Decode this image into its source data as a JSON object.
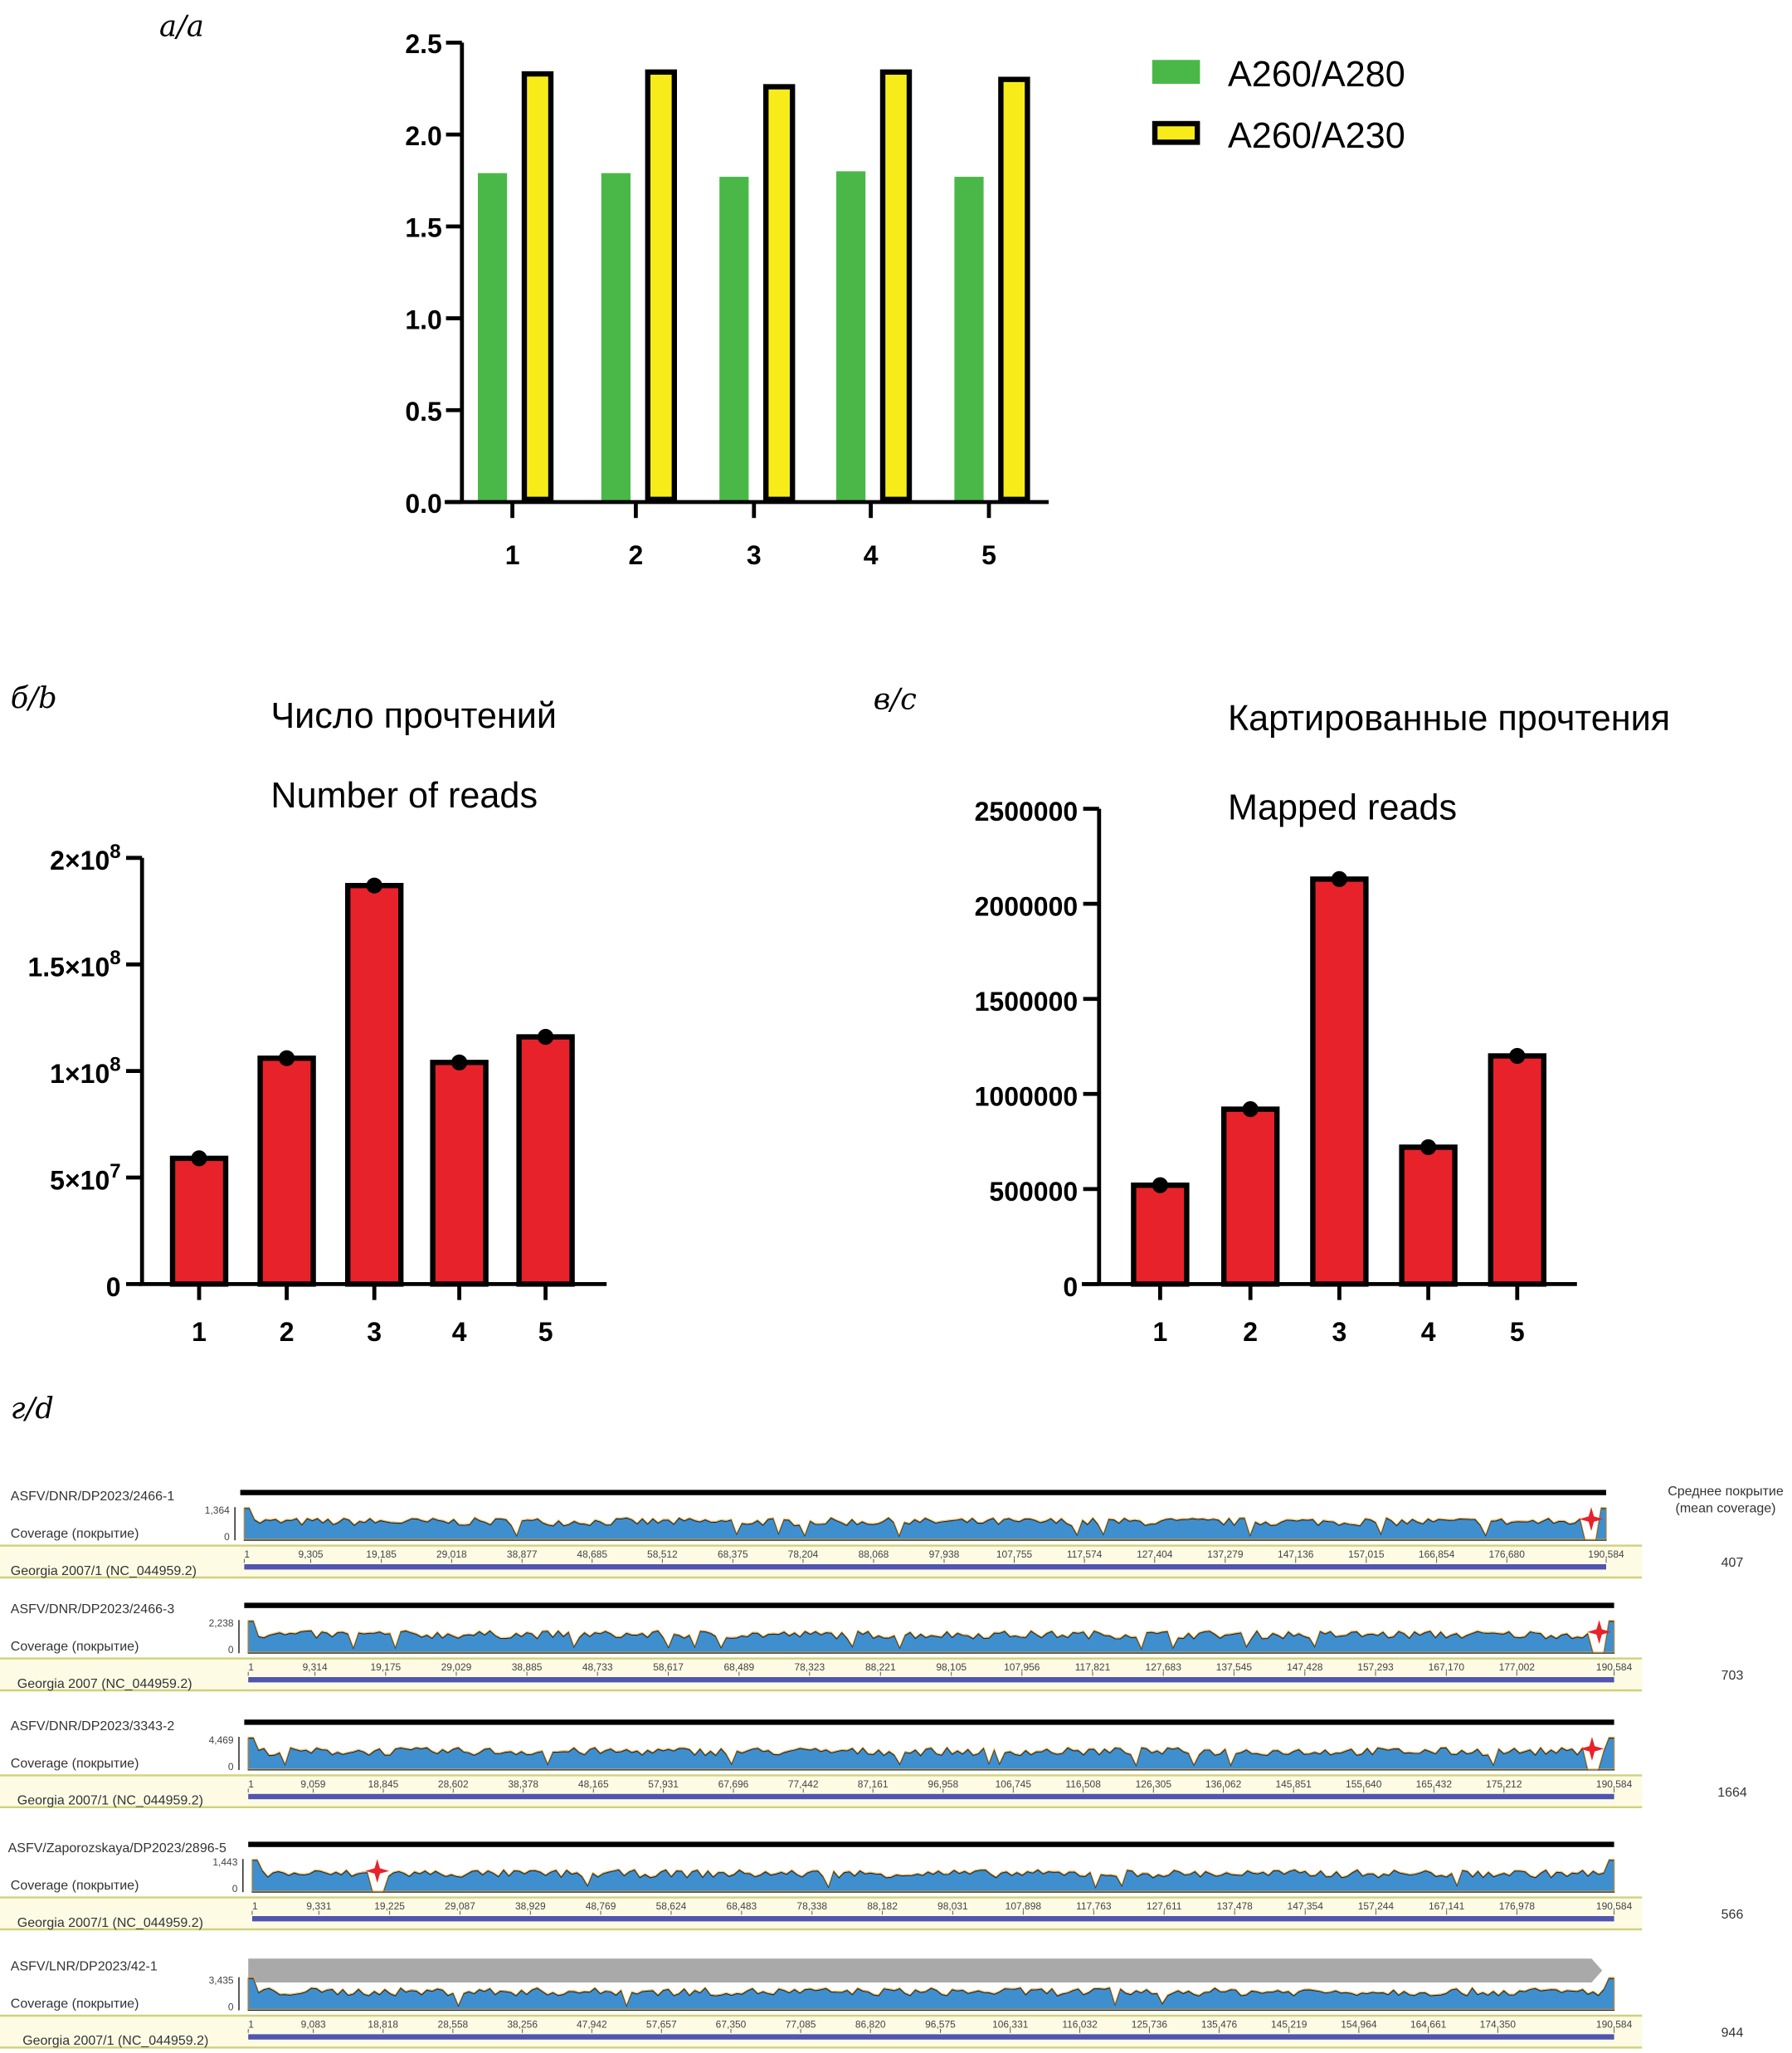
{
  "panel_labels": {
    "a": "а/a",
    "b": "б/b",
    "c": "в/c",
    "d": "г/d"
  },
  "chart_data": [
    {
      "type": "bar",
      "id": "a",
      "title": "",
      "xlabel": "",
      "ylabel": "",
      "categories": [
        "1",
        "2",
        "3",
        "4",
        "5"
      ],
      "ylim": [
        0,
        2.5
      ],
      "yticks": [
        "0.0",
        "0.5",
        "1.0",
        "1.5",
        "2.0",
        "2.5"
      ],
      "legend_position": "top-right",
      "series": [
        {
          "name": "A260/A280",
          "color": "#4ab848",
          "values": [
            1.79,
            1.79,
            1.77,
            1.8,
            1.77
          ]
        },
        {
          "name": "A260/A230",
          "color": "#f7ec1a",
          "values": [
            2.33,
            2.34,
            2.26,
            2.34,
            2.3
          ]
        }
      ]
    },
    {
      "type": "bar",
      "id": "b",
      "title": "Число прочтений",
      "subtitle": "Number of reads",
      "categories": [
        "1",
        "2",
        "3",
        "4",
        "5"
      ],
      "ylim": [
        0,
        200000000
      ],
      "yticks": [
        {
          "base": "0",
          "exp": ""
        },
        {
          "base": "5×10",
          "exp": "7"
        },
        {
          "base": "1×10",
          "exp": "8"
        },
        {
          "base": "1.5×10",
          "exp": "8"
        },
        {
          "base": "2×10",
          "exp": "8"
        }
      ],
      "color": "#e8222a",
      "values": [
        59000000,
        106000000,
        187000000,
        104000000,
        116000000
      ]
    },
    {
      "type": "bar",
      "id": "c",
      "title": "Картированные прочтения",
      "subtitle": "Mapped reads",
      "categories": [
        "1",
        "2",
        "3",
        "4",
        "5"
      ],
      "ylim": [
        0,
        2500000
      ],
      "yticks": [
        "0",
        "500000",
        "1000000",
        "1500000",
        "2000000",
        "2500000"
      ],
      "color": "#e8222a",
      "values": [
        520000,
        920000,
        2130000,
        720000,
        1200000
      ]
    }
  ],
  "coverage": {
    "header": "Среднее покрытие",
    "header_en": "(mean coverage)",
    "tracks": [
      {
        "name": "ASFV/DNR/DP2023/2466-1",
        "coverage_label": "Coverage (покрытие)",
        "max": "1,364",
        "min": "0",
        "reference": "Georgia 2007/1 (NC_044959.2)",
        "mean": "407",
        "star_at": 188500,
        "ticks": [
          "1",
          "9,305",
          "19,185",
          "29,018",
          "38,877",
          "48,685",
          "58,512",
          "68,375",
          "78,204",
          "88,068",
          "97,938",
          "107,755",
          "117,574",
          "127,404",
          "137,279",
          "147,136",
          "157,015",
          "166,854",
          "176,680",
          "190,584"
        ]
      },
      {
        "name": "ASFV/DNR/DP2023/2466-3",
        "coverage_label": "Coverage (покрытие)",
        "max": "2,238",
        "min": "0",
        "reference": "Georgia 2007 (NC_044959.2)",
        "mean": "703",
        "star_at": 188500,
        "ticks": [
          "1",
          "9,314",
          "19,175",
          "29,029",
          "38,885",
          "48,733",
          "58,617",
          "68,489",
          "78,323",
          "88,221",
          "98,105",
          "107,956",
          "117,821",
          "127,683",
          "137,545",
          "147,428",
          "157,293",
          "167,170",
          "177,002",
          "190,584"
        ]
      },
      {
        "name": "ASFV/DNR/DP2023/3343-2",
        "coverage_label": "Coverage (покрытие)",
        "max": "4,469",
        "min": "0",
        "reference": "Georgia 2007/1 (NC_044959.2)",
        "mean": "1664",
        "star_at": 187500,
        "ticks": [
          "1",
          "9,059",
          "18,845",
          "28,602",
          "38,378",
          "48,165",
          "57,931",
          "67,696",
          "77,442",
          "87,161",
          "96,958",
          "106,745",
          "116,508",
          "126,305",
          "136,062",
          "145,851",
          "155,640",
          "165,432",
          "175,212",
          "190,584"
        ]
      },
      {
        "name": "ASFV/Zaporozskaya/DP2023/2896-5",
        "coverage_label": "Coverage (покрытие)",
        "max": "1,443",
        "min": "0",
        "reference": "Georgia 2007/1 (NC_044959.2)",
        "mean": "566",
        "star_at": 17500,
        "ticks": [
          "1",
          "9,331",
          "19,225",
          "29,087",
          "38,929",
          "48,769",
          "58,624",
          "68,483",
          "78,338",
          "88,182",
          "98,031",
          "107,898",
          "117,763",
          "127,611",
          "137,478",
          "147,354",
          "157,244",
          "167,141",
          "176,978",
          "190,584"
        ]
      },
      {
        "name": "ASFV/LNR/DP2023/42-1",
        "coverage_label": "Coverage (покрытие)",
        "max": "3,435",
        "min": "0",
        "reference": "Georgia 2007/1 (NC_044959.2)",
        "mean": "944",
        "star_at": null,
        "ticks": [
          "1",
          "9,083",
          "18,818",
          "28,558",
          "38,256",
          "47,942",
          "57,657",
          "67,350",
          "77,085",
          "86,820",
          "96,575",
          "106,331",
          "116,032",
          "125,736",
          "135,476",
          "145,219",
          "154,964",
          "164,661",
          "174,350",
          "190,584"
        ]
      }
    ]
  }
}
